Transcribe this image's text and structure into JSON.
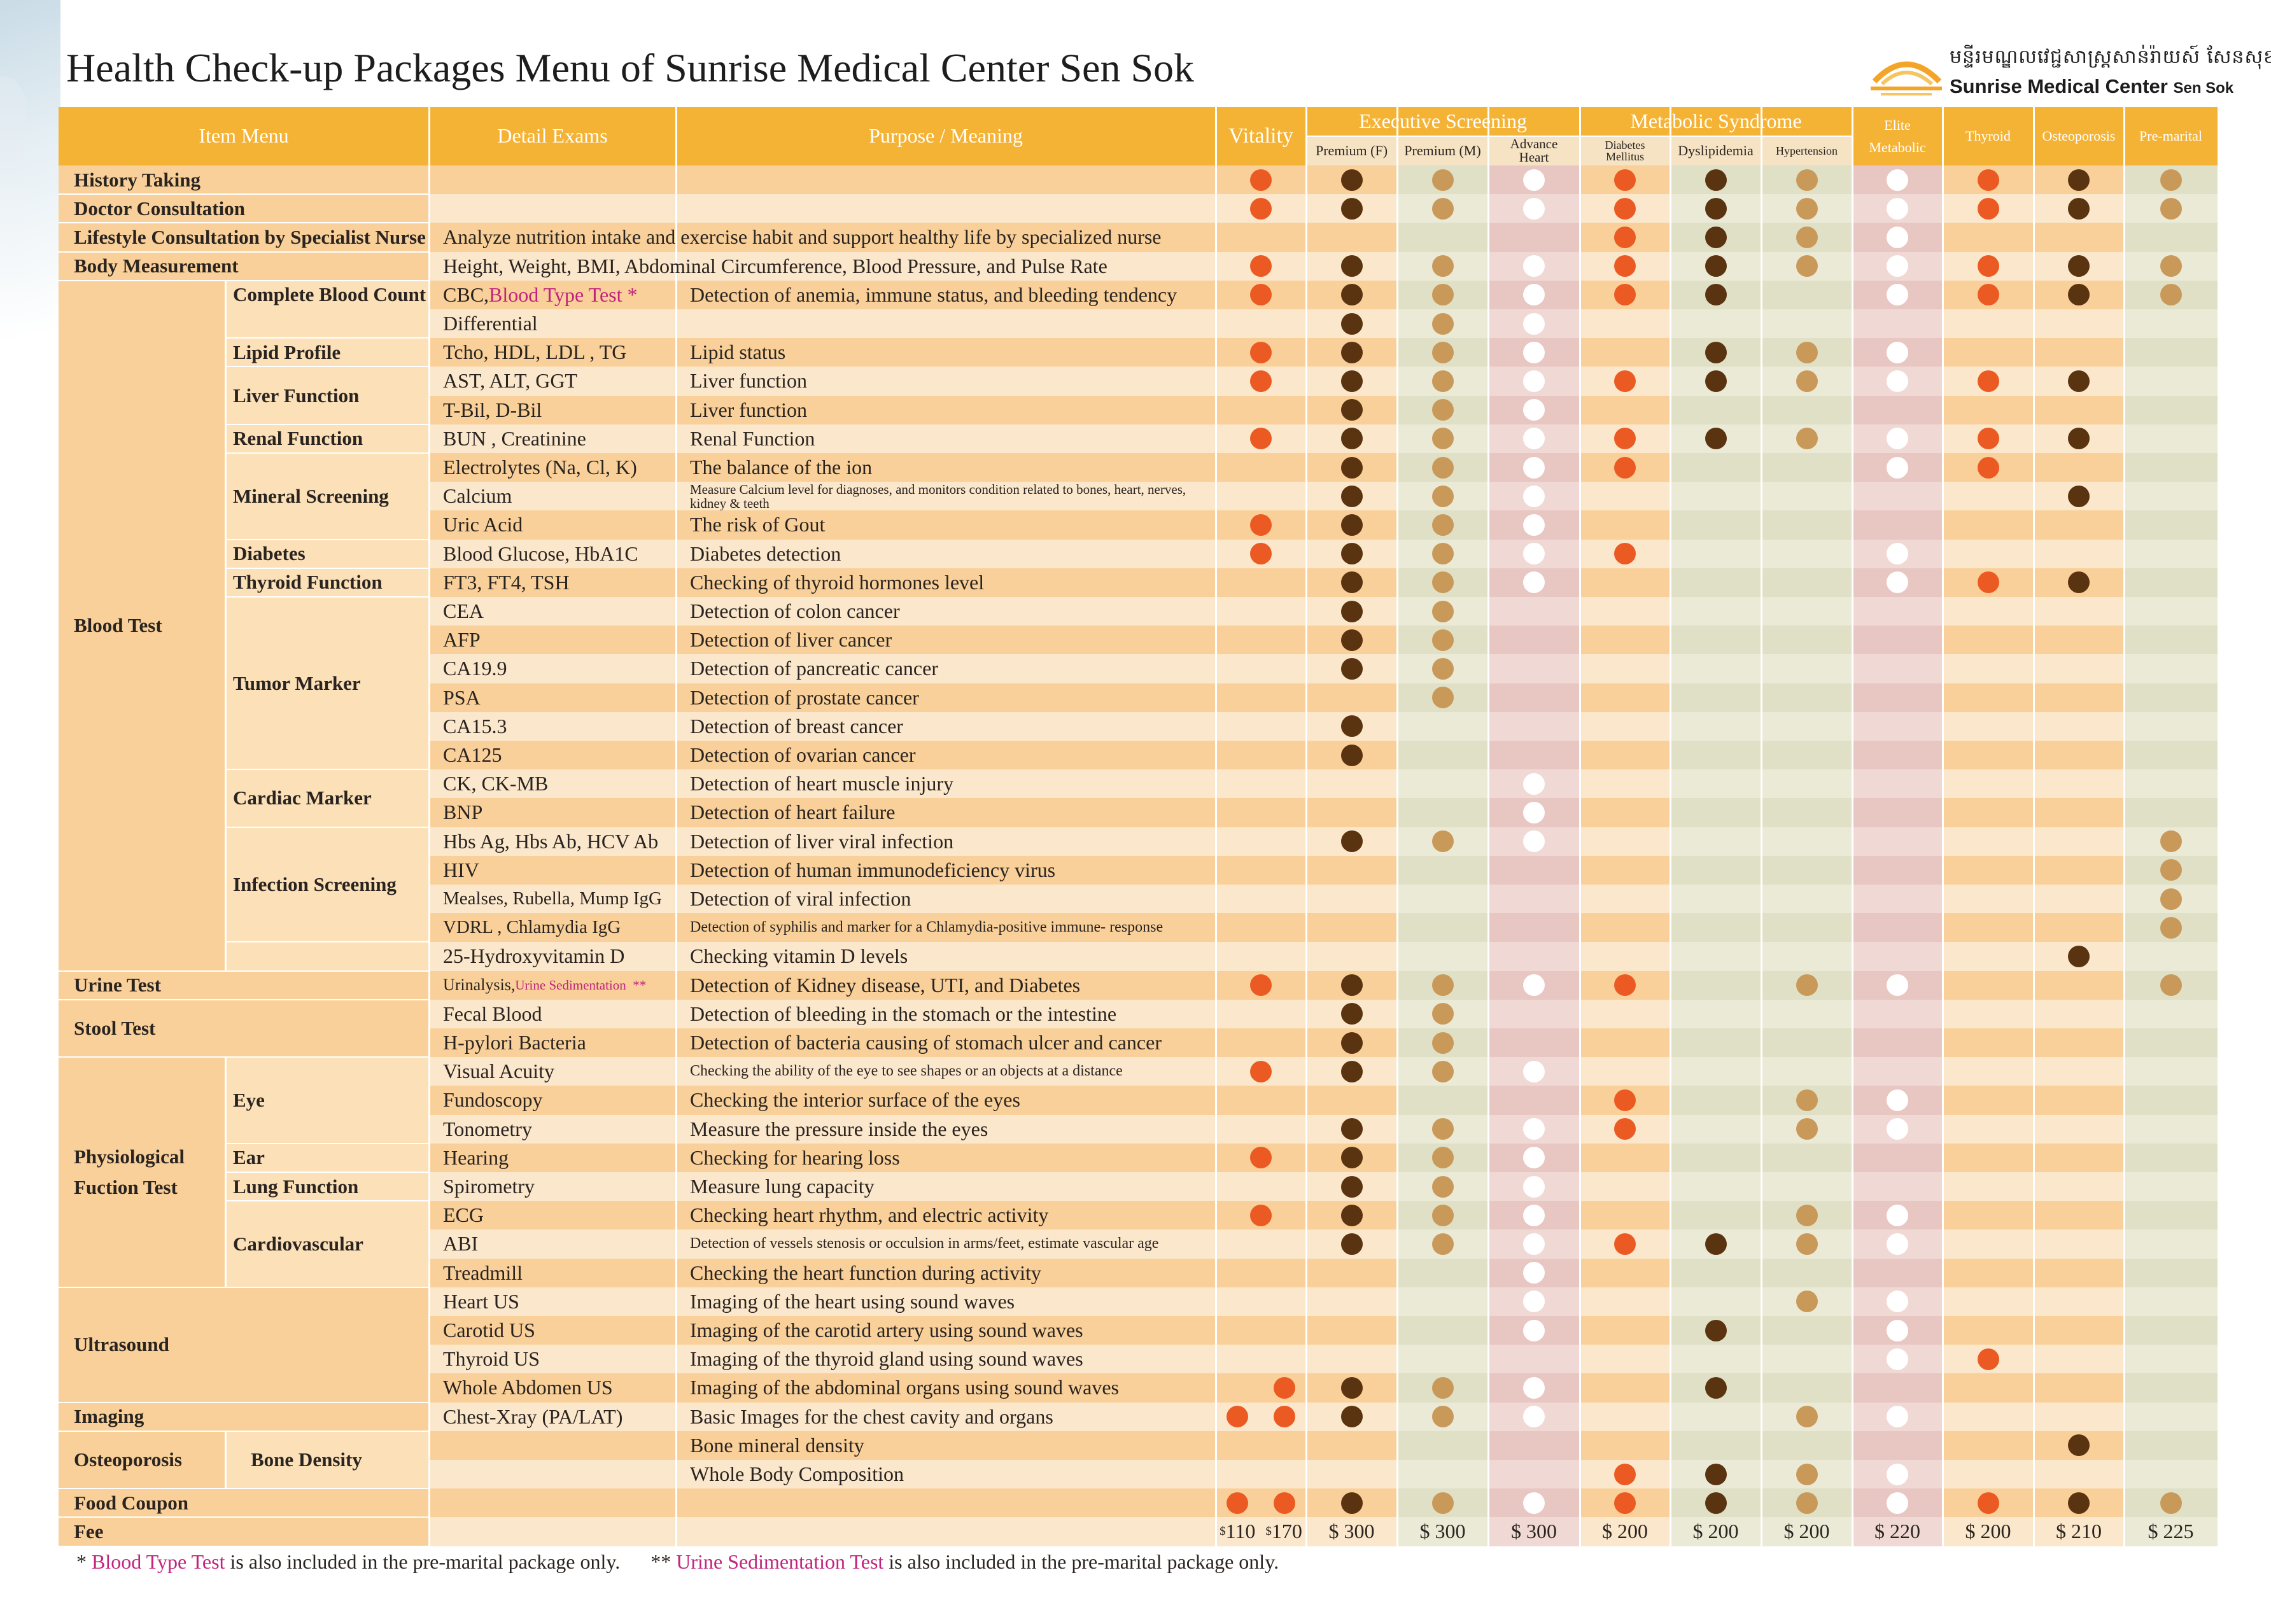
{
  "title": "Health Check-up Packages Menu of Sunrise Medical Center Sen Sok",
  "logo": {
    "khmer": "មន្ទីរមណ្ឌលវេជ្ជសាស្ត្រសាន់រ៉ាយស៍ សែនសុខ",
    "english_main": "Sunrise Medical Center",
    "english_suffix": "Sen Sok"
  },
  "colors": {
    "header_orange": "#f5b335",
    "row_dark": "#f9d099",
    "row_light": "#fbe7cb",
    "col_premium_f_dark": "#f9d099",
    "col_green_dark": "#dfe0c6",
    "col_purple_dark": "#e8c6c2",
    "dot_orange": "#ec5a23",
    "dot_brown": "#5a3410",
    "dot_tan": "#c9995a",
    "dot_white": "#ffffff",
    "pink_text": "#c0237c"
  },
  "headers": {
    "item_menu": "Item Menu",
    "detail_exams": "Detail Exams",
    "purpose": "Purpose / Meaning",
    "vitality": "Vitality",
    "executive_group": "Executive Screening",
    "metabolic_group": "Metabolic Syndrome",
    "premium_f": "Premium (F)",
    "premium_m": "Premium (M)",
    "advance_heart_1": "Advance",
    "advance_heart_2": "Heart",
    "diabetes_1": "Diabetes",
    "diabetes_2": "Mellitus",
    "dyslipidemia": "Dyslipidemia",
    "hypertension": "Hypertension",
    "elite_1": "Elite",
    "elite_2": "Metabolic",
    "thyroid": "Thyroid",
    "osteoporosis": "Osteoporosis",
    "premarital": "Pre-marital"
  },
  "categories": [
    "History Taking",
    "Doctor Consultation",
    "Lifestyle Consultation by Specialist Nurse",
    "Body Measurement",
    "Blood Test",
    "Urine Test",
    "Stool Test",
    "Physiological",
    "Fuction Test",
    "Ultrasound",
    "Imaging",
    "Osteoporosis",
    "Food Coupon",
    "Fee"
  ],
  "subcategories": [
    "Complete Blood Count",
    "Lipid Profile",
    "Liver Function",
    "Renal Function",
    "Mineral Screening",
    "Diabetes",
    "Thyroid Function",
    "Tumor Marker",
    "Cardiac Marker",
    "Infection Screening",
    "Eye",
    "Ear",
    "Lung Function",
    "Cardiovascular",
    "Bone Density"
  ],
  "rows": [
    {
      "detail": "",
      "purpose": "",
      "dots": [
        "O",
        "B",
        "T",
        "W",
        "O",
        "B",
        "T",
        "W",
        "O",
        "B",
        "T"
      ]
    },
    {
      "detail": "",
      "purpose": "",
      "dots": [
        "O",
        "B",
        "T",
        "W",
        "O",
        "B",
        "T",
        "W",
        "O",
        "B",
        "T"
      ]
    },
    {
      "detail": "Analyze nutrition intake and exercise habit and support healthy life by specialized nurse",
      "purpose": "",
      "dots": [
        "",
        "",
        "",
        "",
        "O",
        "B",
        "T",
        "W",
        "",
        "",
        ""
      ]
    },
    {
      "detail": "Height, Weight, BMI, Abdominal Circumference, Blood Pressure, and Pulse Rate",
      "purpose": "",
      "dots": [
        "O",
        "B",
        "T",
        "W",
        "O",
        "B",
        "T",
        "W",
        "O",
        "B",
        "T"
      ]
    },
    {
      "detail": "CBC, ",
      "detail_pink": "Blood Type Test *",
      "purpose": "Detection of  anemia, immune status, and bleeding  tendency",
      "dots": [
        "O",
        "B",
        "T",
        "W",
        "O",
        "B",
        "",
        "W",
        "O",
        "B",
        "T"
      ]
    },
    {
      "detail": "Differential",
      "purpose": "",
      "dots": [
        "",
        "B",
        "T",
        "W",
        "",
        "",
        "",
        "",
        "",
        "",
        ""
      ]
    },
    {
      "detail": "Tcho, HDL, LDL , TG",
      "purpose": "Lipid status",
      "dots": [
        "O",
        "B",
        "T",
        "W",
        "",
        "B",
        "T",
        "W",
        "",
        "",
        ""
      ]
    },
    {
      "detail": "AST, ALT, GGT",
      "purpose": "Liver function",
      "dots": [
        "O",
        "B",
        "T",
        "W",
        "O",
        "B",
        "T",
        "W",
        "O",
        "B",
        ""
      ]
    },
    {
      "detail": "T-Bil, D-Bil",
      "purpose": "Liver function",
      "dots": [
        "",
        "B",
        "T",
        "W",
        "",
        "",
        "",
        "",
        "",
        "",
        ""
      ]
    },
    {
      "detail": "BUN , Creatinine",
      "purpose": "Renal Function",
      "dots": [
        "O",
        "B",
        "T",
        "W",
        "O",
        "B",
        "T",
        "W",
        "O",
        "B",
        ""
      ]
    },
    {
      "detail": "Electrolytes (Na, Cl, K)",
      "purpose": "The balance of the ion",
      "dots": [
        "",
        "B",
        "T",
        "W",
        "O",
        "",
        "",
        "W",
        "O",
        "",
        ""
      ]
    },
    {
      "detail": "Calcium",
      "purpose": "Measure Calcium level for diagnoses, and monitors condition related to bones, heart, nerves, kidney & teeth",
      "dots": [
        "",
        "B",
        "T",
        "W",
        "",
        "",
        "",
        "",
        "",
        "B",
        ""
      ]
    },
    {
      "detail": "Uric Acid",
      "purpose": "The risk of Gout",
      "dots": [
        "O",
        "B",
        "T",
        "W",
        "",
        "",
        "",
        "",
        "",
        "",
        ""
      ]
    },
    {
      "detail": "Blood Glucose, HbA1C",
      "purpose": "Diabetes detection",
      "dots": [
        "O",
        "B",
        "T",
        "W",
        "O",
        "",
        "",
        "W",
        "",
        "",
        ""
      ]
    },
    {
      "detail": "FT3, FT4, TSH",
      "purpose": "Checking of thyroid hormones level",
      "dots": [
        "",
        "B",
        "T",
        "W",
        "",
        "",
        "",
        "W",
        "O",
        "B",
        ""
      ]
    },
    {
      "detail": "CEA",
      "purpose": "Detection of colon cancer",
      "dots": [
        "",
        "B",
        "T",
        "",
        "",
        "",
        "",
        "",
        "",
        "",
        ""
      ]
    },
    {
      "detail": "AFP",
      "purpose": "Detection of liver cancer",
      "dots": [
        "",
        "B",
        "T",
        "",
        "",
        "",
        "",
        "",
        "",
        "",
        ""
      ]
    },
    {
      "detail": "CA19.9",
      "purpose": "Detection of pancreatic cancer",
      "dots": [
        "",
        "B",
        "T",
        "",
        "",
        "",
        "",
        "",
        "",
        "",
        ""
      ]
    },
    {
      "detail": "PSA",
      "purpose": "Detection of prostate cancer",
      "dots": [
        "",
        "",
        "T",
        "",
        "",
        "",
        "",
        "",
        "",
        "",
        ""
      ]
    },
    {
      "detail": "CA15.3",
      "purpose": "Detection of breast cancer",
      "dots": [
        "",
        "B",
        "",
        "",
        "",
        "",
        "",
        "",
        "",
        "",
        ""
      ]
    },
    {
      "detail": "CA125",
      "purpose": "Detection of ovarian cancer",
      "dots": [
        "",
        "B",
        "",
        "",
        "",
        "",
        "",
        "",
        "",
        "",
        ""
      ]
    },
    {
      "detail": "CK, CK-MB",
      "purpose": "Detection of heart muscle injury",
      "dots": [
        "",
        "",
        "",
        "W",
        "",
        "",
        "",
        "",
        "",
        "",
        ""
      ]
    },
    {
      "detail": "BNP",
      "purpose": "Detection of heart failure",
      "dots": [
        "",
        "",
        "",
        "W",
        "",
        "",
        "",
        "",
        "",
        "",
        ""
      ]
    },
    {
      "detail": "Hbs Ag, Hbs Ab, HCV Ab",
      "purpose": "Detection of liver viral infection",
      "dots": [
        "",
        "B",
        "T",
        "W",
        "",
        "",
        "",
        "",
        "",
        "",
        "T"
      ]
    },
    {
      "detail": "HIV",
      "purpose": "Detection of human immunodeficiency virus",
      "dots": [
        "",
        "",
        "",
        "",
        "",
        "",
        "",
        "",
        "",
        "",
        "T"
      ]
    },
    {
      "detail": "Mealses, Rubella, Mump IgG",
      "purpose": "Detection of viral infection",
      "dots": [
        "",
        "",
        "",
        "",
        "",
        "",
        "",
        "",
        "",
        "",
        "T"
      ]
    },
    {
      "detail": "VDRL , Chlamydia IgG",
      "purpose": "Detection of syphilis and marker for a Chlamydia-positive immune- response",
      "dots": [
        "",
        "",
        "",
        "",
        "",
        "",
        "",
        "",
        "",
        "",
        "T"
      ]
    },
    {
      "detail": "25-Hydroxyvitamin D",
      "purpose": "Checking vitamin D levels",
      "dots": [
        "",
        "",
        "",
        "",
        "",
        "",
        "",
        "",
        "",
        "B",
        ""
      ]
    },
    {
      "detail": "Urinalysis, ",
      "detail_pink": "Urine Sedimentation  **",
      "purpose": "Detection of Kidney disease, UTI, and Diabetes",
      "dots": [
        "O",
        "B",
        "T",
        "W",
        "O",
        "",
        "T",
        "W",
        "",
        "",
        "T"
      ]
    },
    {
      "detail": "Fecal Blood",
      "purpose": "Detection of bleeding in the stomach or the intestine",
      "dots": [
        "",
        "B",
        "T",
        "",
        "",
        "",
        "",
        "",
        "",
        "",
        ""
      ]
    },
    {
      "detail": "H-pylori Bacteria",
      "purpose": "Detection of bacteria causing of stomach ulcer and cancer",
      "dots": [
        "",
        "B",
        "T",
        "",
        "",
        "",
        "",
        "",
        "",
        "",
        ""
      ]
    },
    {
      "detail": "Visual Acuity",
      "purpose": "Checking the ability of the eye to see shapes or an objects at a distance",
      "dots": [
        "O",
        "B",
        "T",
        "W",
        "",
        "",
        "",
        "",
        "",
        "",
        ""
      ]
    },
    {
      "detail": "Fundoscopy",
      "purpose": "Checking the interior surface of the eyes",
      "dots": [
        "",
        "",
        "",
        "",
        "O",
        "",
        "T",
        "W",
        "",
        "",
        ""
      ]
    },
    {
      "detail": "Tonometry",
      "purpose": "Measure the pressure inside the eyes",
      "dots": [
        "",
        "B",
        "T",
        "W",
        "O",
        "",
        "T",
        "W",
        "",
        "",
        ""
      ]
    },
    {
      "detail": "Hearing",
      "purpose": "Checking for hearing loss",
      "dots": [
        "O",
        "B",
        "T",
        "W",
        "",
        "",
        "",
        "",
        "",
        "",
        ""
      ]
    },
    {
      "detail": "Spirometry",
      "purpose": "Measure lung capacity",
      "dots": [
        "",
        "B",
        "T",
        "W",
        "",
        "",
        "",
        "",
        "",
        "",
        ""
      ]
    },
    {
      "detail": "ECG",
      "purpose": "Checking heart rhythm, and electric activity",
      "dots": [
        "O",
        "B",
        "T",
        "W",
        "",
        "",
        "T",
        "W",
        "",
        "",
        ""
      ]
    },
    {
      "detail": "ABI",
      "purpose": "Detection of vessels stenosis or occulsion in arms/feet, estimate vascular age",
      "dots": [
        "",
        "B",
        "T",
        "W",
        "O",
        "B",
        "T",
        "W",
        "",
        "",
        ""
      ]
    },
    {
      "detail": "Treadmill",
      "purpose": "Checking the heart function during activity",
      "dots": [
        "",
        "",
        "",
        "W",
        "",
        "",
        "",
        "",
        "",
        "",
        ""
      ]
    },
    {
      "detail": "Heart US",
      "purpose": "Imaging of the heart using sound waves",
      "dots": [
        "",
        "",
        "",
        "W",
        "",
        "",
        "T",
        "W",
        "",
        "",
        ""
      ]
    },
    {
      "detail": "Carotid US",
      "purpose": "Imaging of the carotid artery using sound waves",
      "dots": [
        "",
        "",
        "",
        "W",
        "",
        "B",
        "",
        "W",
        "",
        "",
        ""
      ]
    },
    {
      "detail": "Thyroid US",
      "purpose": "Imaging of the thyroid gland using sound waves",
      "dots": [
        "",
        "",
        "",
        "",
        "",
        "",
        "",
        "W",
        "O",
        "",
        ""
      ]
    },
    {
      "detail": "Whole Abdomen US",
      "purpose": "Imaging of the abdominal organs using sound waves",
      "dots": [
        "O2",
        "B",
        "T",
        "W",
        "",
        "B",
        "",
        "",
        "",
        "",
        ""
      ]
    },
    {
      "detail": "Chest-Xray (PA/LAT)",
      "purpose": "Basic Images for the chest cavity and organs",
      "dots": [
        "OO",
        "B",
        "T",
        "W",
        "",
        "",
        "T",
        "W",
        "",
        "",
        ""
      ]
    },
    {
      "detail": "",
      "purpose": "Bone mineral density",
      "dots": [
        "",
        "",
        "",
        "",
        "",
        "",
        "",
        "",
        "",
        "B",
        ""
      ]
    },
    {
      "detail": "",
      "purpose": "Whole  Body Composition",
      "dots": [
        "",
        "",
        "",
        "",
        "O",
        "B",
        "T",
        "W",
        "",
        "",
        ""
      ]
    },
    {
      "detail": "",
      "purpose": "",
      "dots": [
        "OO",
        "B",
        "T",
        "W",
        "O",
        "B",
        "T",
        "W",
        "O",
        "B",
        "T"
      ]
    }
  ],
  "fees": {
    "vitality_1": "110",
    "vitality_2": "170",
    "dollar": "$",
    "premium_f": "$ 300",
    "premium_m": "$ 300",
    "advance_heart": "$ 300",
    "diabetes": "$ 200",
    "dyslipidemia": "$ 200",
    "hypertension": "$ 200",
    "elite": "$ 220",
    "thyroid": "$ 200",
    "osteoporosis": "$ 210",
    "premarital": "$ 225"
  },
  "footnote": {
    "star": "* ",
    "blood_type": "Blood Type Test",
    "blood_text": " is also included in the pre-marital package only.",
    "dstar": "** ",
    "urine": "Urine Sedimentation Test",
    "urine_text": " is also included in the pre-marital package only."
  }
}
